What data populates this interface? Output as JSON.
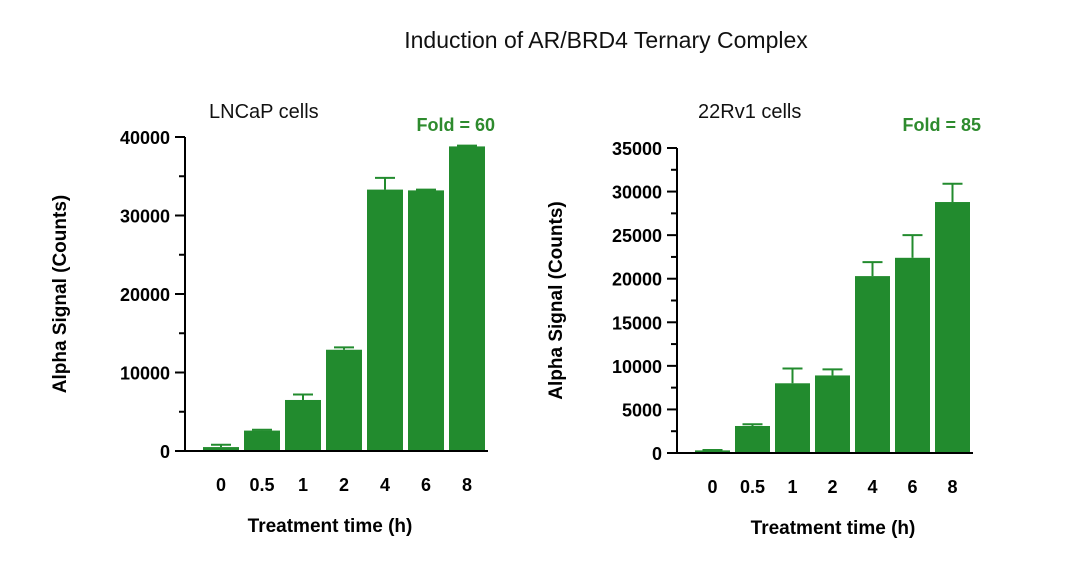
{
  "title": "Induction of AR/BRD4 Ternary Complex",
  "colors": {
    "bar": "#228B2E",
    "fold_text": "#2E8B2E",
    "axis": "#000000"
  },
  "chart_data": [
    {
      "type": "bar",
      "title": "LNCaP cells",
      "annotation": "Fold = 60",
      "xlabel": "Treatment time (h)",
      "ylabel": "Alpha Signal (Counts)",
      "categories": [
        "0",
        "0.5",
        "1",
        "2",
        "4",
        "6",
        "8"
      ],
      "values": [
        500,
        2600,
        6500,
        12900,
        33300,
        33200,
        38800
      ],
      "errors": [
        300,
        100,
        700,
        300,
        1500,
        100,
        100
      ],
      "ylim": [
        0,
        40000
      ],
      "yticks": [
        "0",
        "10000",
        "20000",
        "30000",
        "40000"
      ],
      "grid": false
    },
    {
      "type": "bar",
      "title": "22Rv1 cells",
      "annotation": "Fold = 85",
      "xlabel": "Treatment time (h)",
      "ylabel": "Alpha Signal (Counts)",
      "categories": [
        "0",
        "0.5",
        "1",
        "2",
        "4",
        "6",
        "8"
      ],
      "values": [
        300,
        3100,
        8000,
        8900,
        20300,
        22400,
        28800
      ],
      "errors": [
        50,
        200,
        1700,
        700,
        1600,
        2600,
        2100
      ],
      "ylim": [
        0,
        35000
      ],
      "yticks": [
        "0",
        "5000",
        "10000",
        "15000",
        "20000",
        "25000",
        "30000",
        "35000"
      ],
      "grid": false
    }
  ]
}
